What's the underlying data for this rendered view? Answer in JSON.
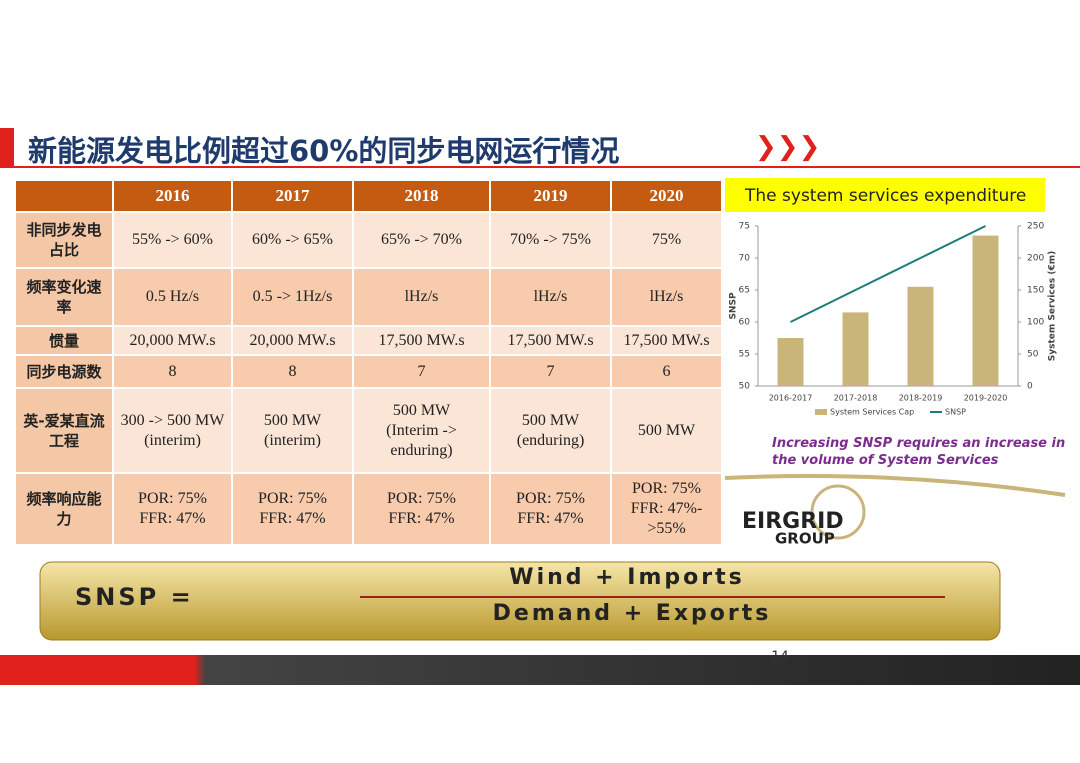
{
  "title": "新能源发电比例超过60%的同步电网运行情况",
  "table": {
    "columns": [
      "2016",
      "2017",
      "2018",
      "2019",
      "2020"
    ],
    "rows": [
      {
        "label": "非同步发电占比",
        "cells": [
          "55% -> 60%",
          "60% -> 65%",
          "65% -> 70%",
          "70% -> 75%",
          "75%"
        ]
      },
      {
        "label": "频率变化速率",
        "cells": [
          "0.5 Hz/s",
          "0.5 -> 1Hz/s",
          "lHz/s",
          "lHz/s",
          "lHz/s"
        ]
      },
      {
        "label": "惯量",
        "cells": [
          "20,000 MW.s",
          "20,000 MW.s",
          "17,500 MW.s",
          "17,500 MW.s",
          "17,500 MW.s"
        ]
      },
      {
        "label": "同步电源数",
        "cells": [
          "8",
          "8",
          "7",
          "7",
          "6"
        ]
      },
      {
        "label": "英-爱某直流工程",
        "cells": [
          "300 -> 500 MW\n(interim)",
          "500 MW\n(interim)",
          "500 MW\n(Interim ->\nenduring)",
          "500 MW\n(enduring)",
          "500 MW"
        ]
      },
      {
        "label": "频率响应能力",
        "cells": [
          "POR: 75%\nFFR: 47%",
          "POR: 75%\nFFR: 47%",
          "POR: 75%\nFFR: 47%",
          "POR: 75%\nFFR: 47%",
          "POR: 75%\nFFR: 47%-\n>55%"
        ]
      }
    ]
  },
  "chart": {
    "type": "bar",
    "title": "The system services expenditure",
    "categories": [
      "2016-2017",
      "2017-2018",
      "2018-2019",
      "2019-2020"
    ],
    "series": [
      {
        "name": "System Services Cap",
        "color": "#c9b57a",
        "axis": "y2",
        "values": [
          75,
          115,
          155,
          235
        ]
      },
      {
        "name": "SNSP",
        "color": "#1e7b7b",
        "type": "line",
        "values": [
          60,
          65,
          70,
          75
        ]
      }
    ],
    "ylabel": "SNSP",
    "y2label": "System Services (€m)",
    "ylim": [
      50,
      75
    ],
    "yticks": [
      50,
      55,
      60,
      65,
      70,
      75
    ],
    "y2lim": [
      0,
      250
    ],
    "y2ticks": [
      0,
      50,
      100,
      150,
      200,
      250
    ]
  },
  "caption": "Increasing SNSP requires an increase in the volume of System Services",
  "logo": {
    "name": "EIRGRID",
    "sub": "GROUP"
  },
  "formula": {
    "lhs": "SNSP =",
    "numerator": "Wind + Imports",
    "denominator": "Demand + Exports"
  },
  "page_number": "14"
}
